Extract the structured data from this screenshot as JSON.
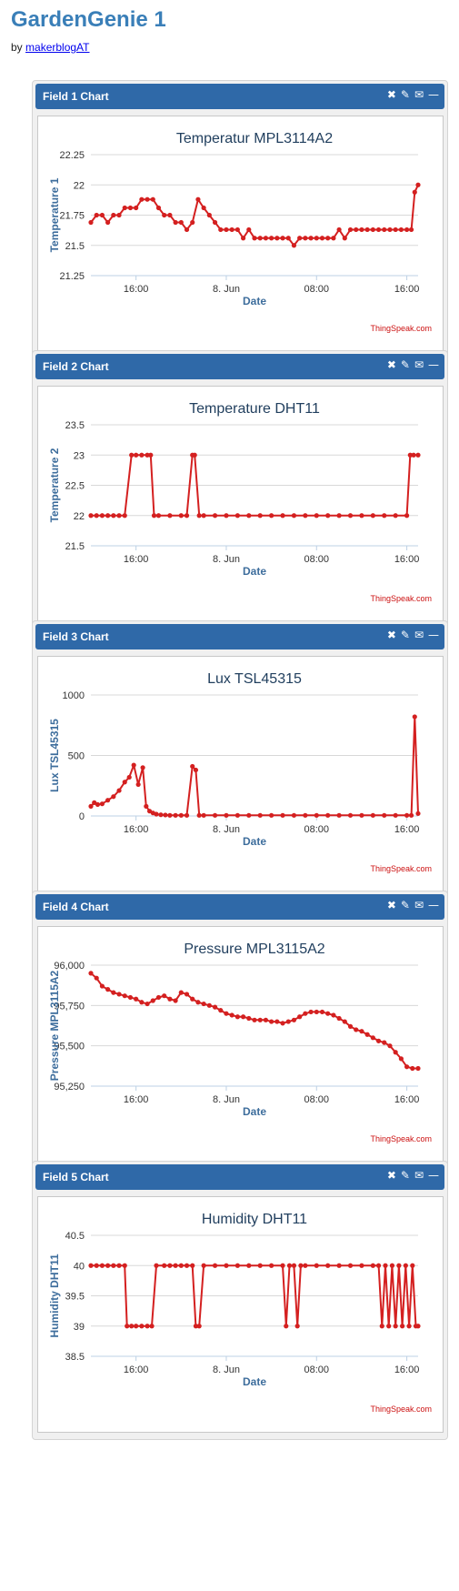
{
  "page": {
    "title": "GardenGenie 1",
    "by_prefix": "by",
    "author": "makerblogAT"
  },
  "icons": [
    "close-icon",
    "pencil-icon",
    "comment-icon",
    "minimize-icon"
  ],
  "chart_data": [
    {
      "type": "line",
      "panel_title": "Field 1 Chart",
      "title": "Temperatur MPL3114A2",
      "xlabel": "Date",
      "ylabel": "Temperature 1",
      "ylim": [
        21.25,
        22.25
      ],
      "yticks": [
        22.25,
        22,
        21.75,
        21.5,
        21.25
      ],
      "ytick_labels": [
        "22.25",
        "22",
        "21.75",
        "21.5",
        "21.25"
      ],
      "xlim": [
        12,
        41
      ],
      "xticks": [
        16,
        24,
        32,
        40
      ],
      "xtick_labels": [
        "16:00",
        "8. Jun",
        "08:00",
        "16:00"
      ],
      "credit": "ThingSpeak.com",
      "grid": true,
      "color": "#d42020",
      "series": [
        {
          "x": [
            12.0,
            12.5,
            13.0,
            13.5,
            14.0,
            14.5,
            15.0,
            15.5,
            16.0,
            16.5,
            17.0,
            17.5,
            18.0,
            18.5,
            19.0,
            19.5,
            20.0,
            20.5,
            21.0,
            21.5,
            22.0,
            22.5,
            23.0,
            23.5,
            24.0,
            24.5,
            25.0,
            25.5,
            26.0,
            26.5,
            27.0,
            27.5,
            28.0,
            28.5,
            29.0,
            29.5,
            30.0,
            30.5,
            31.0,
            31.5,
            32.0,
            32.5,
            33.0,
            33.5,
            34.0,
            34.5,
            35.0,
            35.5,
            36.0,
            36.5,
            37.0,
            37.5,
            38.0,
            38.5,
            39.0,
            39.5,
            40.0,
            40.4,
            40.7,
            41.0
          ],
          "y": [
            21.69,
            21.75,
            21.75,
            21.69,
            21.75,
            21.75,
            21.81,
            21.81,
            21.81,
            21.88,
            21.88,
            21.88,
            21.81,
            21.75,
            21.75,
            21.69,
            21.69,
            21.63,
            21.69,
            21.88,
            21.81,
            21.75,
            21.69,
            21.63,
            21.63,
            21.63,
            21.63,
            21.56,
            21.63,
            21.56,
            21.56,
            21.56,
            21.56,
            21.56,
            21.56,
            21.56,
            21.5,
            21.56,
            21.56,
            21.56,
            21.56,
            21.56,
            21.56,
            21.56,
            21.63,
            21.56,
            21.63,
            21.63,
            21.63,
            21.63,
            21.63,
            21.63,
            21.63,
            21.63,
            21.63,
            21.63,
            21.63,
            21.63,
            21.94,
            22.0
          ]
        }
      ]
    },
    {
      "type": "line",
      "panel_title": "Field 2 Chart",
      "title": "Temperature DHT11",
      "xlabel": "Date",
      "ylabel": "Temperature 2",
      "ylim": [
        21.5,
        23.5
      ],
      "yticks": [
        23.5,
        23,
        22.5,
        22,
        21.5
      ],
      "ytick_labels": [
        "23.5",
        "23",
        "22.5",
        "22",
        "21.5"
      ],
      "xlim": [
        12,
        41
      ],
      "xticks": [
        16,
        24,
        32,
        40
      ],
      "xtick_labels": [
        "16:00",
        "8. Jun",
        "08:00",
        "16:00"
      ],
      "credit": "ThingSpeak.com",
      "grid": true,
      "color": "#d42020",
      "series": [
        {
          "x": [
            12.0,
            12.5,
            13.0,
            13.5,
            14.0,
            14.5,
            15.0,
            15.6,
            16.0,
            16.5,
            17.0,
            17.3,
            17.6,
            18.0,
            19.0,
            20.0,
            20.5,
            21.0,
            21.2,
            21.6,
            22.0,
            23.0,
            24.0,
            25.0,
            26.0,
            27.0,
            28.0,
            29.0,
            30.0,
            31.0,
            32.0,
            33.0,
            34.0,
            35.0,
            36.0,
            37.0,
            38.0,
            39.0,
            40.0,
            40.3,
            40.6,
            41.0
          ],
          "y": [
            22,
            22,
            22,
            22,
            22,
            22,
            22,
            23,
            23,
            23,
            23,
            23,
            22,
            22,
            22,
            22,
            22,
            23,
            23,
            22,
            22,
            22,
            22,
            22,
            22,
            22,
            22,
            22,
            22,
            22,
            22,
            22,
            22,
            22,
            22,
            22,
            22,
            22,
            22,
            23,
            23,
            23
          ]
        }
      ]
    },
    {
      "type": "line",
      "panel_title": "Field 3 Chart",
      "title": "Lux TSL45315",
      "xlabel": "Date",
      "ylabel": "Lux TSL45315",
      "ylim": [
        0,
        1000
      ],
      "yticks": [
        1000,
        500,
        0
      ],
      "ytick_labels": [
        "1000",
        "500",
        "0"
      ],
      "xlim": [
        12,
        41
      ],
      "xticks": [
        16,
        24,
        32,
        40
      ],
      "xtick_labels": [
        "16:00",
        "8. Jun",
        "08:00",
        "16:00"
      ],
      "credit": "ThingSpeak.com",
      "grid": true,
      "color": "#d42020",
      "series": [
        {
          "x": [
            12.0,
            12.3,
            12.6,
            13.0,
            13.5,
            14.0,
            14.5,
            15.0,
            15.4,
            15.8,
            16.2,
            16.6,
            16.9,
            17.2,
            17.5,
            17.8,
            18.2,
            18.6,
            19.0,
            19.5,
            20.0,
            20.5,
            21.0,
            21.3,
            21.6,
            22.0,
            23.0,
            24.0,
            25.0,
            26.0,
            27.0,
            28.0,
            29.0,
            30.0,
            31.0,
            32.0,
            33.0,
            34.0,
            35.0,
            36.0,
            37.0,
            38.0,
            39.0,
            40.0,
            40.4,
            40.7,
            41.0
          ],
          "y": [
            80,
            110,
            95,
            100,
            130,
            160,
            210,
            280,
            320,
            420,
            260,
            400,
            80,
            40,
            25,
            15,
            10,
            8,
            5,
            5,
            5,
            5,
            410,
            380,
            5,
            5,
            5,
            5,
            5,
            5,
            5,
            5,
            5,
            5,
            5,
            5,
            5,
            5,
            5,
            5,
            5,
            5,
            5,
            5,
            5,
            820,
            20
          ]
        }
      ]
    },
    {
      "type": "line",
      "panel_title": "Field 4 Chart",
      "title": "Pressure MPL3115A2",
      "xlabel": "Date",
      "ylabel": "Pressure MPL3115A2",
      "ylim": [
        95250,
        96000
      ],
      "yticks": [
        96000,
        95750,
        95500,
        95250
      ],
      "ytick_labels": [
        "96,000",
        "95,750",
        "95,500",
        "95,250"
      ],
      "xlim": [
        12,
        41
      ],
      "xticks": [
        16,
        24,
        32,
        40
      ],
      "xtick_labels": [
        "16:00",
        "8. Jun",
        "08:00",
        "16:00"
      ],
      "credit": "ThingSpeak.com",
      "grid": true,
      "color": "#d42020",
      "series": [
        {
          "x": [
            12.0,
            12.5,
            13.0,
            13.5,
            14.0,
            14.5,
            15.0,
            15.5,
            16.0,
            16.5,
            17.0,
            17.5,
            18.0,
            18.5,
            19.0,
            19.5,
            20.0,
            20.5,
            21.0,
            21.5,
            22.0,
            22.5,
            23.0,
            23.5,
            24.0,
            24.5,
            25.0,
            25.5,
            26.0,
            26.5,
            27.0,
            27.5,
            28.0,
            28.5,
            29.0,
            29.5,
            30.0,
            30.5,
            31.0,
            31.5,
            32.0,
            32.5,
            33.0,
            33.5,
            34.0,
            34.5,
            35.0,
            35.5,
            36.0,
            36.5,
            37.0,
            37.5,
            38.0,
            38.5,
            39.0,
            39.5,
            40.0,
            40.5,
            41.0
          ],
          "y": [
            95950,
            95920,
            95870,
            95850,
            95830,
            95820,
            95810,
            95800,
            95790,
            95770,
            95760,
            95780,
            95800,
            95810,
            95790,
            95780,
            95830,
            95820,
            95790,
            95770,
            95760,
            95750,
            95740,
            95720,
            95700,
            95690,
            95680,
            95680,
            95670,
            95660,
            95660,
            95660,
            95650,
            95650,
            95640,
            95650,
            95660,
            95680,
            95700,
            95710,
            95710,
            95710,
            95700,
            95690,
            95670,
            95650,
            95620,
            95600,
            95590,
            95570,
            95550,
            95530,
            95520,
            95500,
            95460,
            95420,
            95370,
            95360,
            95360
          ]
        }
      ]
    },
    {
      "type": "line",
      "panel_title": "Field 5 Chart",
      "title": "Humidity DHT11",
      "xlabel": "Date",
      "ylabel": "Humidity DHT11",
      "ylim": [
        38.5,
        40.5
      ],
      "yticks": [
        40.5,
        40,
        39.5,
        39,
        38.5
      ],
      "ytick_labels": [
        "40.5",
        "40",
        "39.5",
        "39",
        "38.5"
      ],
      "xlim": [
        12,
        41
      ],
      "xticks": [
        16,
        24,
        32,
        40
      ],
      "xtick_labels": [
        "16:00",
        "8. Jun",
        "08:00",
        "16:00"
      ],
      "credit": "ThingSpeak.com",
      "grid": true,
      "color": "#d42020",
      "series": [
        {
          "x": [
            12.0,
            12.5,
            13.0,
            13.5,
            14.0,
            14.5,
            15.0,
            15.2,
            15.6,
            16.0,
            16.5,
            17.0,
            17.4,
            17.8,
            18.5,
            19.0,
            19.5,
            20.0,
            20.5,
            21.0,
            21.3,
            21.6,
            22.0,
            23.0,
            24.0,
            25.0,
            26.0,
            27.0,
            28.0,
            29.0,
            29.3,
            29.6,
            30.0,
            30.3,
            30.6,
            31.0,
            32.0,
            33.0,
            34.0,
            35.0,
            36.0,
            37.0,
            37.5,
            37.8,
            38.1,
            38.4,
            38.7,
            39.0,
            39.3,
            39.6,
            39.9,
            40.2,
            40.5,
            40.8,
            41.0
          ],
          "y": [
            40,
            40,
            40,
            40,
            40,
            40,
            40,
            39,
            39,
            39,
            39,
            39,
            39,
            40,
            40,
            40,
            40,
            40,
            40,
            40,
            39,
            39,
            40,
            40,
            40,
            40,
            40,
            40,
            40,
            40,
            39,
            40,
            40,
            39,
            40,
            40,
            40,
            40,
            40,
            40,
            40,
            40,
            40,
            39,
            40,
            39,
            40,
            39,
            40,
            39,
            40,
            39,
            40,
            39,
            39
          ]
        }
      ]
    }
  ]
}
